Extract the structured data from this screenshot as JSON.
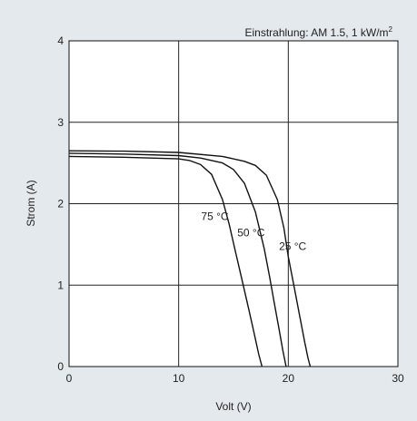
{
  "chart_data": {
    "type": "line",
    "xlabel": "Volt (V)",
    "ylabel": "Strom (A)",
    "xlim": [
      0,
      30
    ],
    "ylim": [
      0,
      4
    ],
    "xticks": [
      "0",
      "10",
      "20",
      "30"
    ],
    "yticks": [
      "0",
      "1",
      "2",
      "3",
      "4"
    ],
    "grid": true,
    "annotation": "Einstrahlung: AM 1.5, 1 kW/m",
    "annotation_superscript": "2",
    "series": [
      {
        "name": "25 °C",
        "color": "#111111",
        "x": [
          0,
          5,
          10,
          14,
          16,
          17,
          18,
          19,
          19.6,
          20,
          20.5,
          21,
          21.5,
          21.8,
          22
        ],
        "y": [
          2.65,
          2.645,
          2.63,
          2.58,
          2.52,
          2.47,
          2.35,
          2.05,
          1.7,
          1.35,
          1.0,
          0.65,
          0.3,
          0.1,
          0
        ]
      },
      {
        "name": "50 °C",
        "color": "#111111",
        "x": [
          0,
          5,
          10,
          12,
          14,
          15,
          16,
          17,
          17.8,
          18.3,
          18.7,
          19.1,
          19.5,
          19.8
        ],
        "y": [
          2.62,
          2.61,
          2.59,
          2.56,
          2.5,
          2.42,
          2.25,
          1.9,
          1.45,
          1.1,
          0.8,
          0.5,
          0.2,
          0
        ]
      },
      {
        "name": "75 °C",
        "color": "#111111",
        "x": [
          0,
          5,
          10,
          11,
          12,
          13,
          14,
          14.6,
          15.2,
          15.8,
          16.4,
          16.9,
          17.3,
          17.6
        ],
        "y": [
          2.58,
          2.57,
          2.55,
          2.53,
          2.48,
          2.36,
          2.05,
          1.75,
          1.4,
          1.05,
          0.7,
          0.4,
          0.15,
          0
        ]
      }
    ],
    "curve_labels": [
      "75 °C",
      "50 °C",
      "25 °C"
    ]
  }
}
